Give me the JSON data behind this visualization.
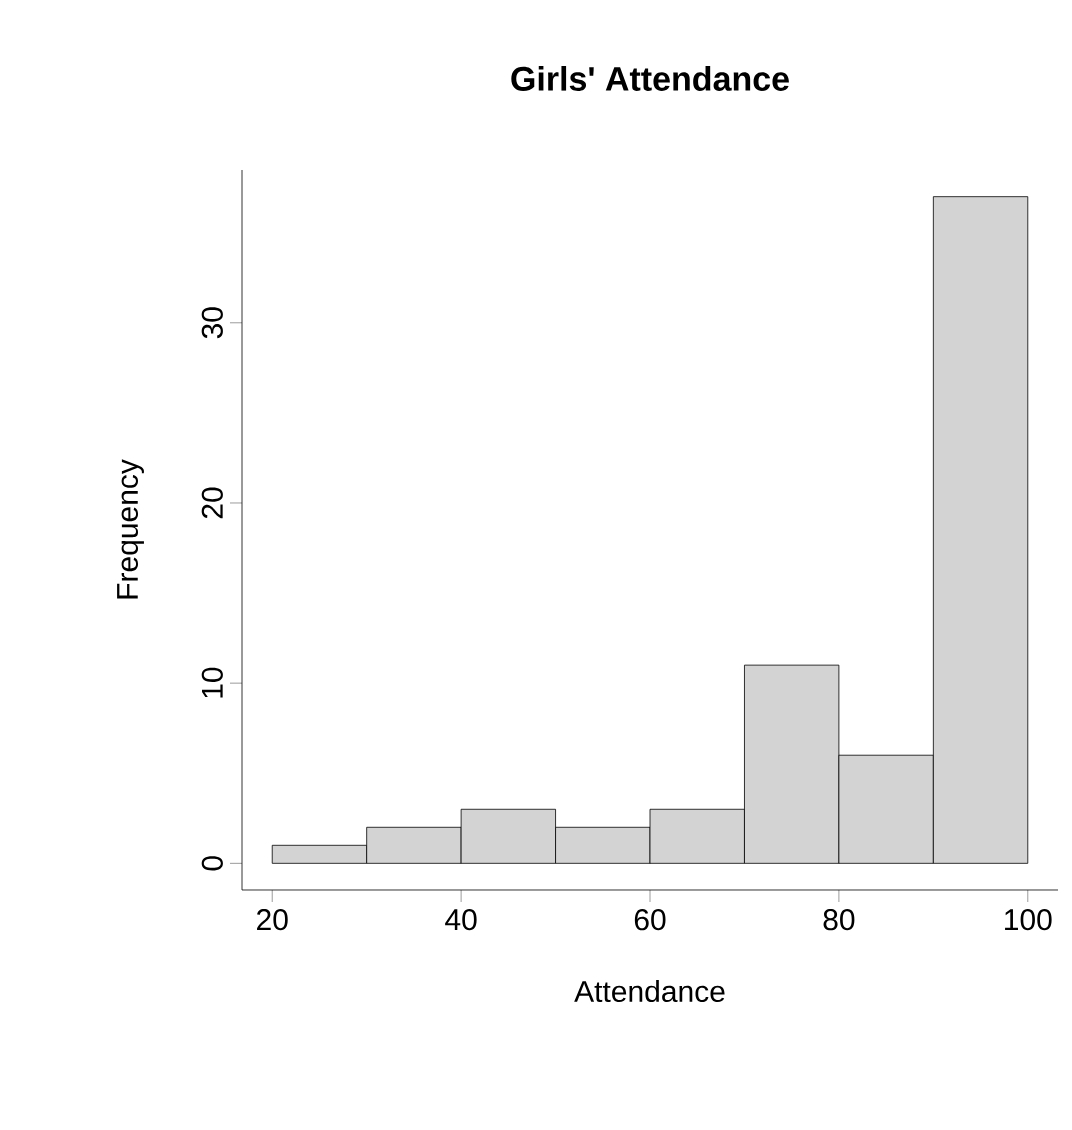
{
  "chart_data": {
    "type": "histogram",
    "title": "Girls' Attendance",
    "xlabel": "Attendance",
    "ylabel": "Frequency",
    "bins": [
      20,
      30,
      40,
      50,
      60,
      70,
      80,
      90,
      100
    ],
    "values": [
      1,
      2,
      3,
      2,
      3,
      11,
      6,
      37
    ],
    "color": "#d3d3d3",
    "xlim": [
      16.8,
      103.2
    ],
    "ylim": [
      -1.48,
      38.48
    ],
    "xticks": [
      20,
      40,
      60,
      80,
      100
    ],
    "yticks": [
      0,
      10,
      20,
      30
    ],
    "grid": false
  }
}
